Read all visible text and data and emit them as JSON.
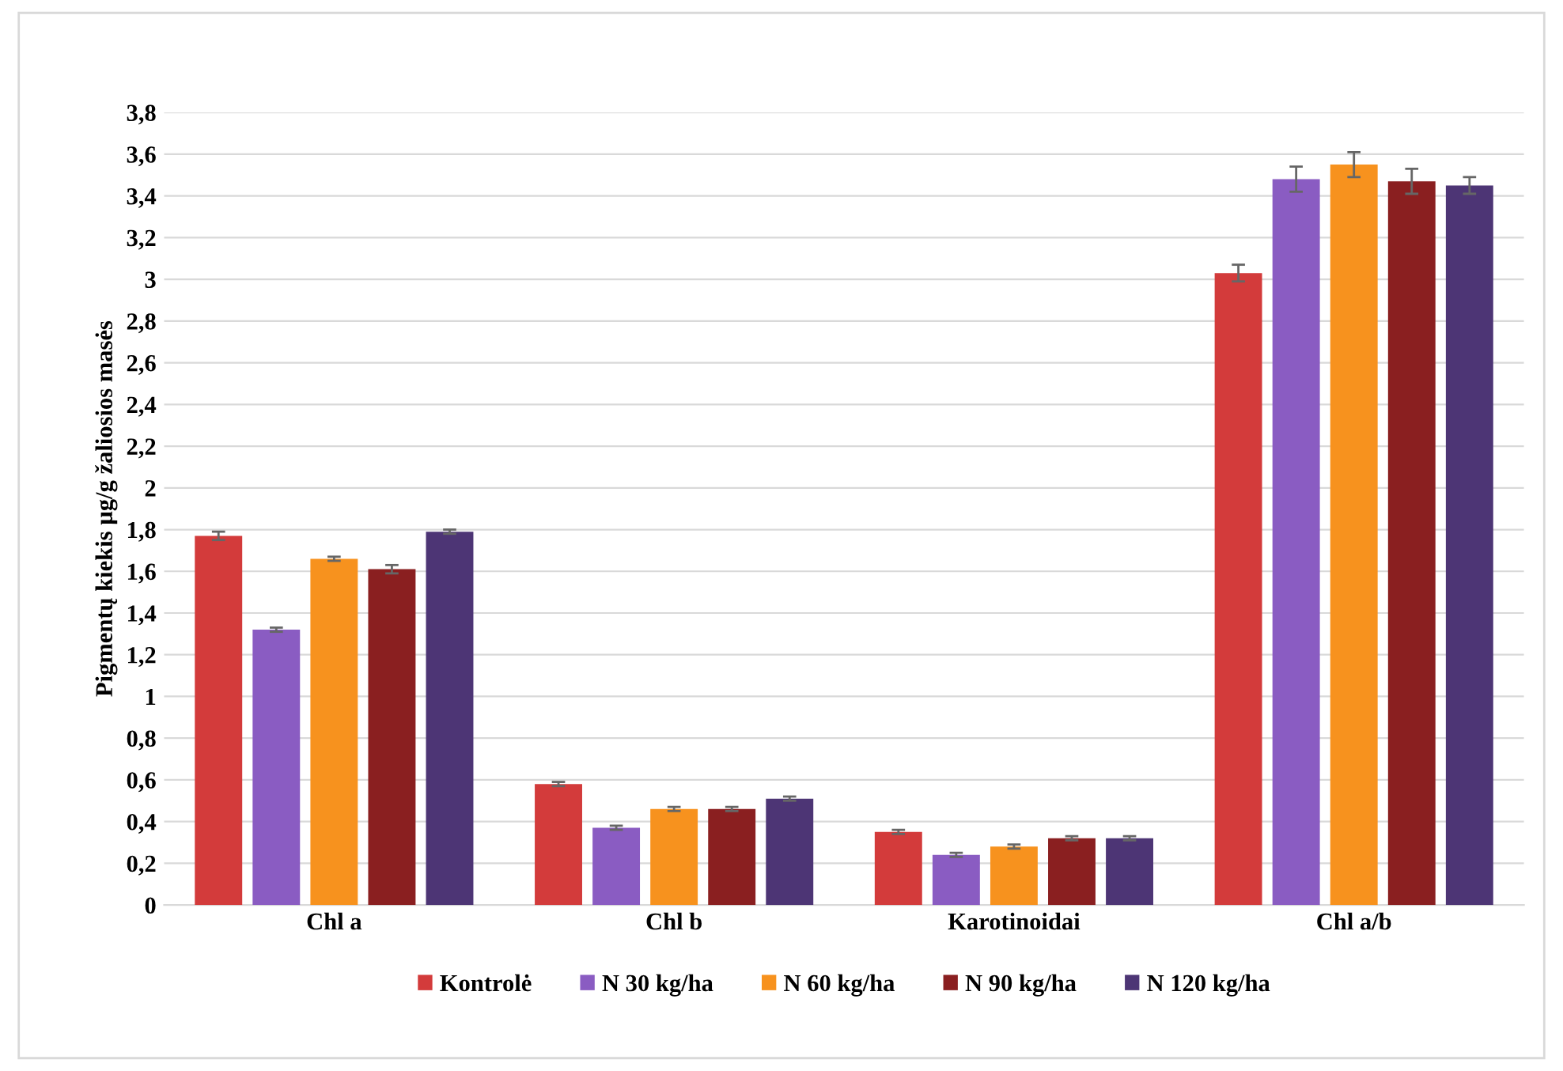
{
  "chart_data": {
    "type": "bar",
    "ylabel": "Pigmentų kiekis µg/g žaliosios masės",
    "categories": [
      "Chl a",
      "Chl b",
      "Karotinoidai",
      "Chl a/b"
    ],
    "series": [
      {
        "name": "Kontrolė",
        "color": "#d33b3b",
        "values": [
          1.77,
          0.58,
          0.35,
          3.03
        ],
        "errors": [
          0.02,
          0.01,
          0.01,
          0.04
        ]
      },
      {
        "name": "N 30 kg/ha",
        "color": "#8a5cc2",
        "values": [
          1.32,
          0.37,
          0.24,
          3.48
        ],
        "errors": [
          0.01,
          0.01,
          0.01,
          0.06
        ]
      },
      {
        "name": "N 60 kg/ha",
        "color": "#f7921e",
        "values": [
          1.66,
          0.46,
          0.28,
          3.55
        ],
        "errors": [
          0.01,
          0.01,
          0.01,
          0.06
        ]
      },
      {
        "name": "N 90 kg/ha",
        "color": "#8a1f20",
        "values": [
          1.61,
          0.46,
          0.32,
          3.47
        ],
        "errors": [
          0.02,
          0.01,
          0.01,
          0.06
        ]
      },
      {
        "name": "N 120 kg/ha",
        "color": "#4d3575",
        "values": [
          1.79,
          0.51,
          0.32,
          3.45
        ],
        "errors": [
          0.01,
          0.01,
          0.01,
          0.04
        ]
      }
    ],
    "ylim": [
      0,
      3.8
    ],
    "yticks": [
      0,
      {
        "value": 0.2,
        "label": "0,2"
      },
      {
        "value": 0.4,
        "label": "0,4"
      },
      {
        "value": 0.6,
        "label": "0,6"
      },
      {
        "value": 0.8,
        "label": "0,8"
      },
      1,
      {
        "value": 1.2,
        "label": "1,2"
      },
      {
        "value": 1.4,
        "label": "1,4"
      },
      {
        "value": 1.6,
        "label": "1,6"
      },
      {
        "value": 1.8,
        "label": "1,8"
      },
      2,
      {
        "value": 2.2,
        "label": "2,2"
      },
      {
        "value": 2.4,
        "label": "2,4"
      },
      {
        "value": 2.6,
        "label": "2,6"
      },
      {
        "value": 2.8,
        "label": "2,8"
      },
      3,
      {
        "value": 3.2,
        "label": "3,2"
      },
      {
        "value": 3.4,
        "label": "3,4"
      },
      {
        "value": 3.6,
        "label": "3,6"
      },
      {
        "value": 3.8,
        "label": "3,8"
      }
    ],
    "grid": "y",
    "legend": "bottom"
  }
}
